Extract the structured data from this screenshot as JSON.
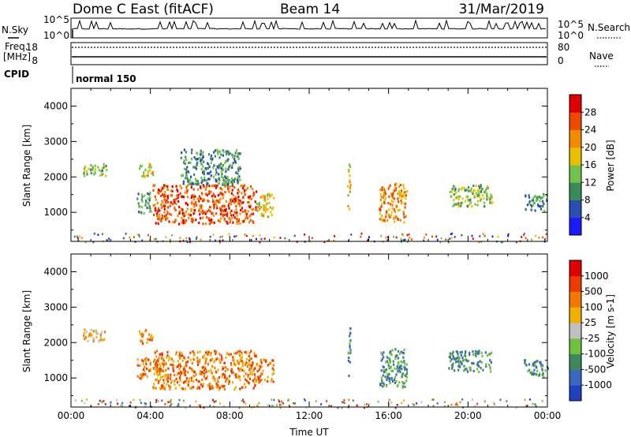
{
  "header": {
    "title": "Dome C East (fitACF)",
    "beam": "Beam 14",
    "date": "31/Mar/2019"
  },
  "status_panels": {
    "nsky_label": "N.Sky",
    "nsky_ticks": [
      "10^5",
      "10^0"
    ],
    "nsearch_label": "N.Search",
    "nsearch_ticks": [
      "10^5",
      "10^0"
    ],
    "freq_label": "Freq.",
    "freq_unit": "[MHz]",
    "freq_ticks": [
      "18",
      "8"
    ],
    "nave_label": "Nave",
    "nave_ticks": [
      "80",
      "0"
    ],
    "cpid_label": "CPID",
    "cpid_value": "normal 150"
  },
  "chart_data": [
    {
      "type": "heatmap",
      "name": "power",
      "ylabel": "Slant Range [km]",
      "xlabel": "",
      "ylim": [
        180,
        4500
      ],
      "yticks": [
        "1000",
        "2000",
        "3000",
        "4000"
      ],
      "xlim_hours": [
        0,
        24
      ],
      "colorbar": {
        "label": "Power [dB]",
        "ticks": [
          "4",
          "8",
          "12",
          "16",
          "20",
          "24",
          "28"
        ],
        "colors": [
          "#1a1aff",
          "#2a4fb0",
          "#3a8a5a",
          "#6fc24a",
          "#e8c000",
          "#f08a00",
          "#ee4a00",
          "#e00000"
        ]
      },
      "regions": [
        {
          "t0": 0.6,
          "t1": 1.8,
          "r0": 2050,
          "r1": 2400,
          "level": 3
        },
        {
          "t0": 3.4,
          "t1": 4.1,
          "r0": 2000,
          "r1": 2400,
          "level": 4
        },
        {
          "t0": 3.3,
          "t1": 4.0,
          "r0": 1000,
          "r1": 1600,
          "level": 2
        },
        {
          "t0": 4.1,
          "t1": 9.3,
          "r0": 700,
          "r1": 1800,
          "level": 6
        },
        {
          "t0": 5.5,
          "t1": 8.5,
          "r0": 1800,
          "r1": 2800,
          "level": 2
        },
        {
          "t0": 9.3,
          "t1": 10.2,
          "r0": 900,
          "r1": 1550,
          "level": 4
        },
        {
          "t0": 13.9,
          "t1": 14.05,
          "r0": 1050,
          "r1": 2450,
          "level": 4
        },
        {
          "t0": 15.5,
          "t1": 16.9,
          "r0": 750,
          "r1": 1850,
          "level": 5
        },
        {
          "t0": 19.0,
          "t1": 21.2,
          "r0": 1200,
          "r1": 1800,
          "level": 3
        },
        {
          "t0": 22.8,
          "t1": 24.0,
          "r0": 1050,
          "r1": 1550,
          "level": 2
        }
      ]
    },
    {
      "type": "heatmap",
      "name": "velocity",
      "ylabel": "Slant Range [km]",
      "xlabel": "Time UT",
      "ylim": [
        180,
        4500
      ],
      "yticks": [
        "1000",
        "2000",
        "3000",
        "4000"
      ],
      "xticks": [
        "00:00",
        "04:00",
        "08:00",
        "12:00",
        "16:00",
        "20:00",
        "00:00"
      ],
      "xlim_hours": [
        0,
        24
      ],
      "colorbar": {
        "label": "Velocity [m s-1]",
        "ticks": [
          "1000",
          "500",
          "100",
          "25",
          "-25",
          "-100",
          "-500",
          "-1000"
        ],
        "colors": [
          "#2040c0",
          "#3a68c0",
          "#3c8a5c",
          "#70c040",
          "#c0c0c0",
          "#f0b000",
          "#f07a00",
          "#ee3a00",
          "#e00000"
        ]
      },
      "regions": [
        {
          "t0": 0.6,
          "t1": 1.8,
          "r0": 2050,
          "r1": 2400,
          "level": 5
        },
        {
          "t0": 3.4,
          "t1": 4.1,
          "r0": 2000,
          "r1": 2400,
          "level": 6
        },
        {
          "t0": 3.3,
          "t1": 4.0,
          "r0": 1000,
          "r1": 1600,
          "level": 6
        },
        {
          "t0": 4.1,
          "t1": 9.3,
          "r0": 700,
          "r1": 1800,
          "level": 6
        },
        {
          "t0": 9.3,
          "t1": 10.2,
          "r0": 900,
          "r1": 1550,
          "level": 6
        },
        {
          "t0": 13.9,
          "t1": 14.05,
          "r0": 1050,
          "r1": 2450,
          "level": 2
        },
        {
          "t0": 15.5,
          "t1": 16.9,
          "r0": 750,
          "r1": 1850,
          "level": 2
        },
        {
          "t0": 19.0,
          "t1": 21.2,
          "r0": 1200,
          "r1": 1800,
          "level": 2
        },
        {
          "t0": 22.8,
          "t1": 24.0,
          "r0": 1050,
          "r1": 1550,
          "level": 2
        }
      ]
    }
  ]
}
